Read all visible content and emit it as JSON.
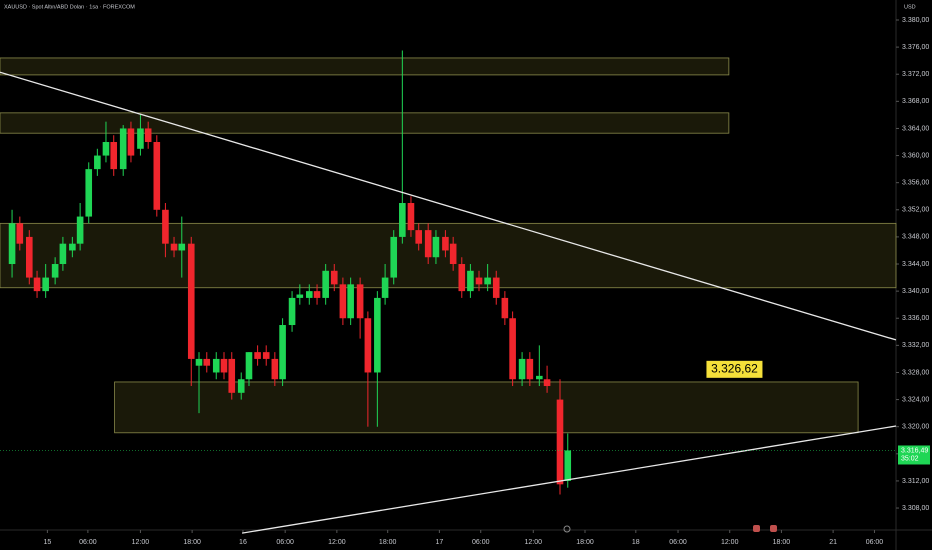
{
  "chart_data": {
    "type": "candlestick",
    "title": "XAUUSD · Spot Altın/ABD Doları · 1sa · FOREXCOM",
    "currency": "USD",
    "up_color": "#1fd655",
    "down_color": "#f0262d",
    "x": [
      1.4,
      2.3,
      3.4,
      4.3,
      5.3,
      6.4,
      7.3,
      8.4,
      9.3,
      10.3,
      11.3,
      12.3,
      13.2,
      14.3,
      15.2,
      16.3,
      17.2,
      18.2,
      19.2,
      20.2,
      21.1,
      22.2,
      23.1,
      24.0,
      25.1,
      26.0,
      26.9,
      28.0,
      28.9,
      29.9,
      30.9,
      31.9,
      32.8,
      33.9,
      34.8,
      35.9,
      36.8,
      37.8,
      38.8,
      39.8,
      40.7,
      41.8,
      42.7,
      43.8,
      44.7,
      45.7,
      46.7,
      47.7,
      48.6,
      49.7,
      50.6,
      51.7,
      52.6,
      53.6,
      54.6,
      55.6,
      56.6,
      57.6,
      58.6,
      59.5,
      60.6,
      61.5,
      62.6,
      63.5,
      65.0,
      65.9
    ],
    "open": [
      3344,
      3350,
      3348,
      3342,
      3340,
      3342,
      3344,
      3346,
      3347,
      3351,
      3358,
      3360,
      3362,
      3358,
      3364,
      3361,
      3364,
      3362,
      3352,
      3347,
      3346,
      3347,
      3329,
      3330,
      3328,
      3330,
      3330,
      3325,
      3327,
      3331,
      3331,
      3330,
      3327,
      3335,
      3339,
      3339,
      3340,
      3339,
      3343,
      3341,
      3336,
      3341,
      3336,
      3328,
      3339,
      3342,
      3348,
      3353,
      3349,
      3349,
      3345,
      3348,
      3347,
      3344,
      3340,
      3342,
      3341,
      3342,
      3339,
      3336,
      3327,
      3330,
      3327,
      3327,
      3324,
      3312
    ],
    "high": [
      3352,
      3351,
      3349,
      3343,
      3344,
      3345,
      3348,
      3348,
      3353,
      3359,
      3361,
      3365,
      3363,
      3364.5,
      3365,
      3366,
      3365,
      3363,
      3353,
      3348,
      3351,
      3348,
      3331,
      3331,
      3331,
      3331,
      3331,
      3328,
      3331,
      3332,
      3332,
      3331,
      3336,
      3340,
      3341,
      3341,
      3341,
      3344,
      3344,
      3342,
      3342,
      3342,
      3337,
      3340,
      3344,
      3349,
      3375.5,
      3354,
      3350,
      3350,
      3349,
      3349,
      3348,
      3345,
      3344,
      3343,
      3344,
      3343,
      3340,
      3337,
      3331,
      3331,
      3332,
      3329,
      3327,
      3319
    ],
    "low": [
      3342,
      3346,
      3341,
      3339,
      3339,
      3341,
      3343,
      3345,
      3346,
      3350,
      3357,
      3359,
      3357,
      3357,
      3359,
      3360,
      3361,
      3351,
      3345,
      3345,
      3342,
      3326,
      3322,
      3328,
      3327,
      3327,
      3324,
      3324,
      3326,
      3329,
      3329,
      3326,
      3326,
      3334,
      3338,
      3338,
      3338,
      3338,
      3340,
      3335,
      3335,
      3333,
      3320,
      3320,
      3338,
      3341,
      3347,
      3348,
      3346,
      3344,
      3344,
      3345,
      3343,
      3339,
      3339,
      3340,
      3340,
      3338,
      3335,
      3326,
      3326,
      3326,
      3326,
      3325,
      3310,
      3311
    ],
    "close": [
      3350,
      3347,
      3342,
      3340,
      3342,
      3344,
      3347,
      3347,
      3351,
      3358,
      3360,
      3362,
      3358,
      3364,
      3360,
      3364,
      3362,
      3352,
      3347,
      3346,
      3347,
      3330,
      3330,
      3329,
      3330,
      3328,
      3325,
      3327,
      3331,
      3330,
      3330,
      3327,
      3335,
      3339,
      3339.5,
      3340,
      3339,
      3343,
      3341,
      3336,
      3341,
      3336,
      3328,
      3339,
      3342,
      3348,
      3353,
      3349,
      3347,
      3345,
      3348,
      3346,
      3344,
      3340,
      3343,
      3341,
      3342,
      3339,
      3336,
      3327,
      3330,
      3327,
      3327.5,
      3326,
      3311.5,
      3316.5
    ],
    "zones": [
      {
        "x": [
          0,
          84.6
        ],
        "y": [
          3371.9,
          3374.4
        ]
      },
      {
        "x": [
          0,
          84.6
        ],
        "y": [
          3363.3,
          3366.3
        ]
      },
      {
        "x": [
          0,
          104
        ],
        "y": [
          3340.5,
          3350.0
        ]
      },
      {
        "x": [
          13.3,
          99.6
        ],
        "y": [
          3319.1,
          3326.6
        ]
      }
    ],
    "trendlines": [
      {
        "x": [
          0,
          104
        ],
        "y": [
          3372.3,
          3332.8
        ]
      },
      {
        "x": [
          28.1,
          104
        ],
        "y": [
          3304.3,
          3320.1
        ]
      }
    ],
    "annotation": {
      "x": 82,
      "value": 3326.62,
      "label": "3.326,62"
    },
    "last_price": {
      "value": 3316.49,
      "label": "3.316,49"
    },
    "countdown": "35:02",
    "xlim": [
      0,
      104
    ],
    "ylim": [
      3304.76,
      3382.95
    ],
    "xticks": [
      {
        "value": 5.5,
        "label": "15"
      },
      {
        "value": 10.2,
        "label": "06:00"
      },
      {
        "value": 16.3,
        "label": "12:00"
      },
      {
        "value": 22.3,
        "label": "18:00"
      },
      {
        "value": 28.2,
        "label": "16"
      },
      {
        "value": 33.1,
        "label": "06:00"
      },
      {
        "value": 39.1,
        "label": "12:00"
      },
      {
        "value": 45.0,
        "label": "18:00"
      },
      {
        "value": 51.0,
        "label": "17"
      },
      {
        "value": 55.8,
        "label": "06:00"
      },
      {
        "value": 61.9,
        "label": "12:00"
      },
      {
        "value": 67.9,
        "label": "18:00"
      },
      {
        "value": 73.8,
        "label": "18"
      },
      {
        "value": 78.7,
        "label": "06:00"
      },
      {
        "value": 84.7,
        "label": "12:00"
      },
      {
        "value": 90.7,
        "label": "18:00"
      },
      {
        "value": 96.7,
        "label": "21"
      },
      {
        "value": 101.5,
        "label": "06:00"
      }
    ],
    "yticks": [
      {
        "value": 3308,
        "label": "3.308,00"
      },
      {
        "value": 3312,
        "label": "3.312,00"
      },
      {
        "value": 3316,
        "label": "3.316,00"
      },
      {
        "value": 3320,
        "label": "3.320,00"
      },
      {
        "value": 3324,
        "label": "3.324,00"
      },
      {
        "value": 3328,
        "label": "3.328,00"
      },
      {
        "value": 3332,
        "label": "3.332,00"
      },
      {
        "value": 3336,
        "label": "3.336,00"
      },
      {
        "value": 3340,
        "label": "3.340,00"
      },
      {
        "value": 3344,
        "label": "3.344,00"
      },
      {
        "value": 3348,
        "label": "3.348,00"
      },
      {
        "value": 3352,
        "label": "3.352,00"
      },
      {
        "value": 3356,
        "label": "3.356,00"
      },
      {
        "value": 3360,
        "label": "3.360,00"
      },
      {
        "value": 3364,
        "label": "3.364,00"
      },
      {
        "value": 3368,
        "label": "3.368,00"
      },
      {
        "value": 3372,
        "label": "3.372,00"
      },
      {
        "value": 3376,
        "label": "3.376,00"
      },
      {
        "value": 3380,
        "label": "3.380,00"
      }
    ],
    "grid": false
  }
}
